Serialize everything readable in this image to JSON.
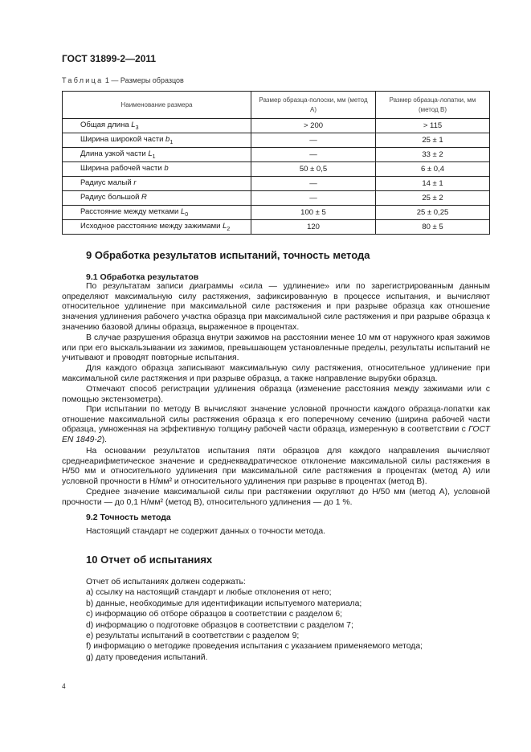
{
  "header": {
    "doc_id": "ГОСТ 31899-2—2011"
  },
  "table": {
    "caption_word": "Таблица",
    "caption_rest": " 1 — Размеры образцов",
    "headers": [
      "Наименование размера",
      "Размер образца-полоски, мм (метод А)",
      "Размер образца-лопатки, мм (метод В)"
    ],
    "rows": [
      {
        "name": "Общая длина ",
        "sym": "L",
        "sub": "3",
        "a": "> 200",
        "b": "> 115"
      },
      {
        "name": "Ширина широкой части ",
        "sym": "b",
        "sub": "1",
        "a": "—",
        "b": "25 ± 1"
      },
      {
        "name": "Длина узкой части ",
        "sym": "L",
        "sub": "1",
        "a": "—",
        "b": "33 ± 2"
      },
      {
        "name": "Ширина рабочей части ",
        "sym": "b",
        "sub": "",
        "a": "50 ± 0,5",
        "b": "6 ± 0,4"
      },
      {
        "name": "Радиус малый ",
        "sym": "r",
        "sub": "",
        "a": "—",
        "b": "14 ± 1"
      },
      {
        "name": "Радиус большой ",
        "sym": "R",
        "sub": "",
        "a": "—",
        "b": "25 ± 2"
      },
      {
        "name": "Расстояние между метками ",
        "sym": "L",
        "sub": "0",
        "a": "100 ± 5",
        "b": "25 ± 0,25"
      },
      {
        "name": "Исходное расстояние между зажимами ",
        "sym": "L",
        "sub": "2",
        "a": "120",
        "b": "80 ± 5"
      }
    ]
  },
  "section9": {
    "title": "9  Обработка результатов испытаний, точность метода",
    "s91_title": "9.1  Обработка результатов",
    "p1": "По результатам записи диаграммы «сила — удлинение» или по зарегистрированным данным определяют максимальную силу растяжения, зафиксированную в процессе испытания, и вычисляют относительное удлинение при максимальной силе растяжения и при разрыве образца как отношение значения удлинения рабочего участка образца при максимальной силе растяжения и при разрыве образца к значению базовой длины образца, выраженное в процентах.",
    "p2": "В случае разрушения образца внутри зажимов на расстоянии менее 10 мм от наружного края зажимов или при его выскальзывании из зажимов, превышающем установленные пределы, результаты испытаний не учитывают и проводят повторные испытания.",
    "p3": "Для каждого образца записывают максимальную силу растяжения, относительное удлинение при максимальной силе растяжения и при разрыве образца, а также направление вырубки образца.",
    "p4": "Отмечают способ регистрации удлинения образца (изменение расстояния между зажимами или с помощью экстензометра).",
    "p5": "При испытании по методу В вычисляют значение условной прочности каждого образца-лопатки как отношение максимальной силы растяжения образца к его поперечному сечению (ширина рабочей части образца, умноженная на эффективную толщину рабочей части образца, измеренную в соответствии с ",
    "p5_ref": "ГОСТ EN 1849-2",
    "p5_end": ").",
    "p6": "На основании результатов испытания пяти образцов для каждого направления вычисляют среднеарифметическое значение и среднеквадратическое отклонение максимальной силы растяжения в Н/50 мм и относительного удлинения при максимальной силе растяжения в процентах (метод А) или условной прочности в Н/мм² и относительного удлинения при разрыве в процентах (метод В).",
    "p7": "Среднее значение максимальной силы при растяжении округляют до Н/50 мм (метод А), условной прочности — до 0,1 Н/мм² (метод В), относительного удлинения — до 1 %.",
    "s92_title": "9.2  Точность метода",
    "s92_text": "Настоящий стандарт не содержит данных о точности метода."
  },
  "section10": {
    "title": "10  Отчет об испытаниях",
    "intro": "Отчет об испытаниях должен содержать:",
    "items": [
      "a)  ссылку на настоящий стандарт и любые отклонения от него;",
      "b)  данные, необходимые для идентификации испытуемого материала;",
      "c)  информацию об отборе образцов в соответствии с разделом 6;",
      "d)  информацию о подготовке образцов в соответствии с разделом 7;",
      "e)  результаты испытаний в соответствии с разделом 9;",
      "f)  информацию о методике проведения испытания с указанием применяемого метода;",
      "g)  дату проведения испытаний."
    ]
  },
  "footer": {
    "page_number": "4"
  }
}
